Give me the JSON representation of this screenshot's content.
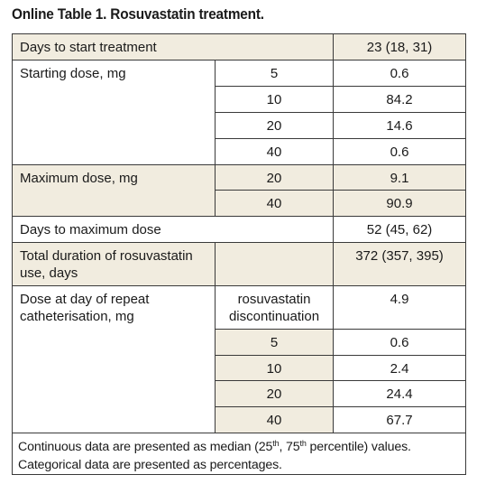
{
  "title": "Online Table 1. Rosuvastatin treatment.",
  "rows": {
    "days_to_start": {
      "label": "Days to start treatment",
      "value": "23 (18, 31)"
    },
    "starting_dose": {
      "label": "Starting dose, mg",
      "items": [
        {
          "dose": "5",
          "value": "0.6"
        },
        {
          "dose": "10",
          "value": "84.2"
        },
        {
          "dose": "20",
          "value": "14.6"
        },
        {
          "dose": "40",
          "value": "0.6"
        }
      ]
    },
    "maximum_dose": {
      "label": "Maximum dose, mg",
      "items": [
        {
          "dose": "20",
          "value": "9.1"
        },
        {
          "dose": "40",
          "value": "90.9"
        }
      ]
    },
    "days_to_max": {
      "label": "Days to maximum dose",
      "value": "52 (45, 62)"
    },
    "total_duration": {
      "label": "Total duration of rosuvastatin use, days",
      "value": "372 (357, 395)"
    },
    "dose_repeat": {
      "label": "Dose at day of repeat catheterisation, mg",
      "items": [
        {
          "dose": "rosuvastatin discontinuation",
          "value": "4.9"
        },
        {
          "dose": "5",
          "value": "0.6"
        },
        {
          "dose": "10",
          "value": "2.4"
        },
        {
          "dose": "20",
          "value": "24.4"
        },
        {
          "dose": "40",
          "value": "67.7"
        }
      ]
    }
  },
  "footnote": {
    "line1_a": "Continuous data are presented as median (25",
    "sup1": "th",
    "line1_b": ", 75",
    "sup2": "th",
    "line1_c": " percentile) values.",
    "line2": "Categorical data are presented as percentages."
  }
}
